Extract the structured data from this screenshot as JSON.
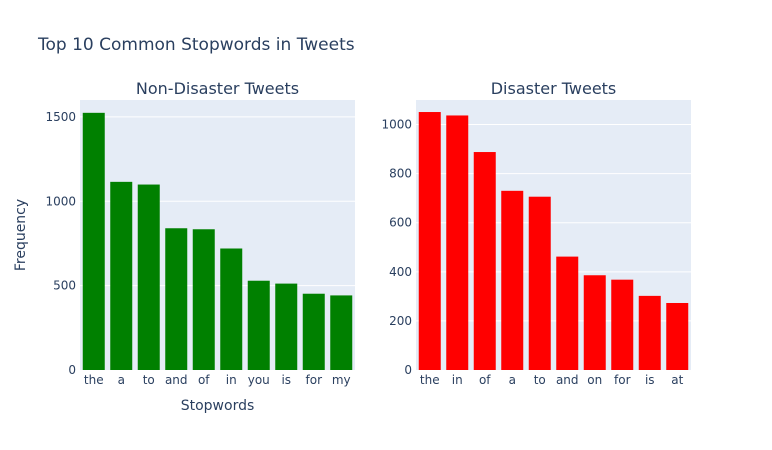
{
  "title": "Top 10 Common Stopwords in Tweets",
  "chart_data": [
    {
      "type": "bar",
      "title": "Non-Disaster Tweets",
      "xlabel": "Stopwords",
      "ylabel": "Frequency",
      "categories": [
        "the",
        "a",
        "to",
        "and",
        "of",
        "in",
        "you",
        "is",
        "for",
        "my"
      ],
      "values": [
        1524,
        1115,
        1099,
        840,
        834,
        720,
        529,
        512,
        452,
        442
      ],
      "ylim": [
        0,
        1600
      ],
      "yticks": [
        0,
        500,
        1000,
        1500
      ],
      "color": "#008000",
      "grid": true
    },
    {
      "type": "bar",
      "title": "Disaster Tweets",
      "xlabel": "",
      "ylabel": "",
      "categories": [
        "the",
        "in",
        "of",
        "a",
        "to",
        "and",
        "on",
        "for",
        "is",
        "at"
      ],
      "values": [
        1051,
        1037,
        888,
        730,
        706,
        462,
        386,
        368,
        302,
        273
      ],
      "ylim": [
        0,
        1100
      ],
      "yticks": [
        0,
        200,
        400,
        600,
        800,
        1000
      ],
      "color": "#ff0000",
      "grid": true
    }
  ]
}
